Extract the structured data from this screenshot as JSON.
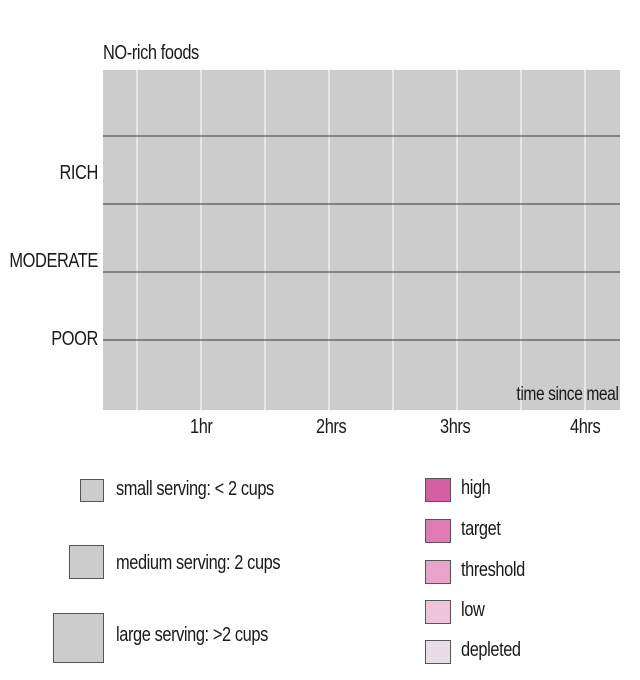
{
  "chart_data": {
    "type": "heatmap",
    "title": "NO-rich foods",
    "xlabel": "time since meal",
    "ylabel": "",
    "x_ticks": [
      "1hr",
      "2hrs",
      "3hrs",
      "4hrs"
    ],
    "y_categories": [
      "RICH",
      "MODERATE",
      "POOR"
    ],
    "grid": true,
    "size_legend": [
      {
        "label": "small serving: < 2 cups",
        "size": "small"
      },
      {
        "label": "medium serving: 2 cups",
        "size": "medium"
      },
      {
        "label": "large serving: >2 cups",
        "size": "large"
      }
    ],
    "color_legend": [
      {
        "label": "high",
        "color": "#d65ea3"
      },
      {
        "label": "target",
        "color": "#e07ab4"
      },
      {
        "label": "threshold",
        "color": "#e8a3c9"
      },
      {
        "label": "low",
        "color": "#edc4da"
      },
      {
        "label": "depleted",
        "color": "#e8dce6"
      }
    ]
  },
  "colors": {
    "plot_bg": "#cccccc",
    "grid_vertical": "#ffffff",
    "grid_horizontal": "#333333",
    "swatch_gray": "#cccccc"
  }
}
